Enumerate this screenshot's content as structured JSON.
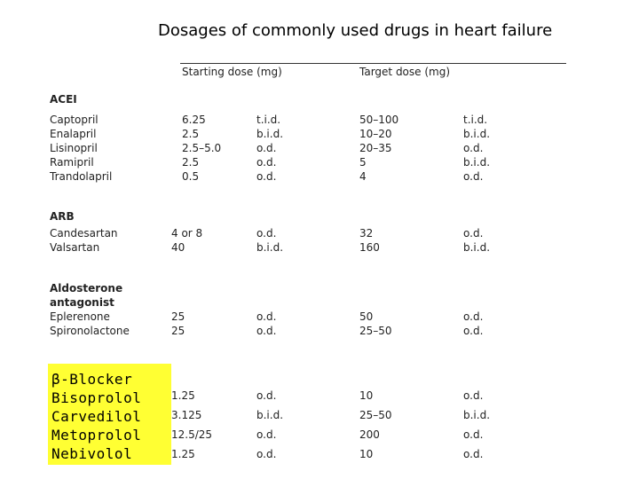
{
  "title": "Dosages of commonly used drugs in heart failure",
  "columns": {
    "starting": "Starting dose (mg)",
    "target": "Target dose (mg)"
  },
  "groups": {
    "acei": {
      "heading": "ACEI",
      "drugs": [
        "Captopril",
        "Enalapril",
        "Lisinopril",
        "Ramipril",
        "Trandolapril"
      ],
      "start_dose": [
        "6.25",
        "2.5",
        "2.5–5.0",
        "2.5",
        "0.5"
      ],
      "start_freq": [
        "t.i.d.",
        "b.i.d.",
        "o.d.",
        "o.d.",
        "o.d."
      ],
      "target_dose": [
        "50–100",
        "10–20",
        "20–35",
        "5",
        "4"
      ],
      "target_freq": [
        "t.i.d.",
        "b.i.d.",
        "o.d.",
        "b.i.d.",
        "o.d."
      ]
    },
    "arb": {
      "heading": "ARB",
      "drugs": [
        "Candesartan",
        "Valsartan"
      ],
      "start_dose": [
        "4 or 8",
        "40"
      ],
      "start_freq": [
        "o.d.",
        "b.i.d."
      ],
      "target_dose": [
        "32",
        "160"
      ],
      "target_freq": [
        "o.d.",
        "b.i.d."
      ]
    },
    "aldo": {
      "heading_line1": "Aldosterone",
      "heading_line2": "antagonist",
      "drugs": [
        "Eplerenone",
        "Spironolactone"
      ],
      "start_dose": [
        "25",
        "25"
      ],
      "start_freq": [
        "o.d.",
        "o.d."
      ],
      "target_dose": [
        "50",
        "25–50"
      ],
      "target_freq": [
        "o.d.",
        "o.d."
      ]
    },
    "bb": {
      "heading": "β-Blocker",
      "drugs": [
        "Bisoprolol",
        "Carvedilol",
        "Metoprolol",
        "Nebivolol"
      ],
      "start_dose": [
        "1.25",
        "3.125",
        "12.5/25",
        "1.25"
      ],
      "start_freq": [
        "o.d.",
        "b.i.d.",
        "o.d.",
        "o.d."
      ],
      "target_dose": [
        "10",
        "25–50",
        "200",
        "10"
      ],
      "target_freq": [
        "o.d.",
        "b.i.d.",
        "o.d.",
        "o.d."
      ],
      "highlight_color": "#ffff33"
    }
  }
}
